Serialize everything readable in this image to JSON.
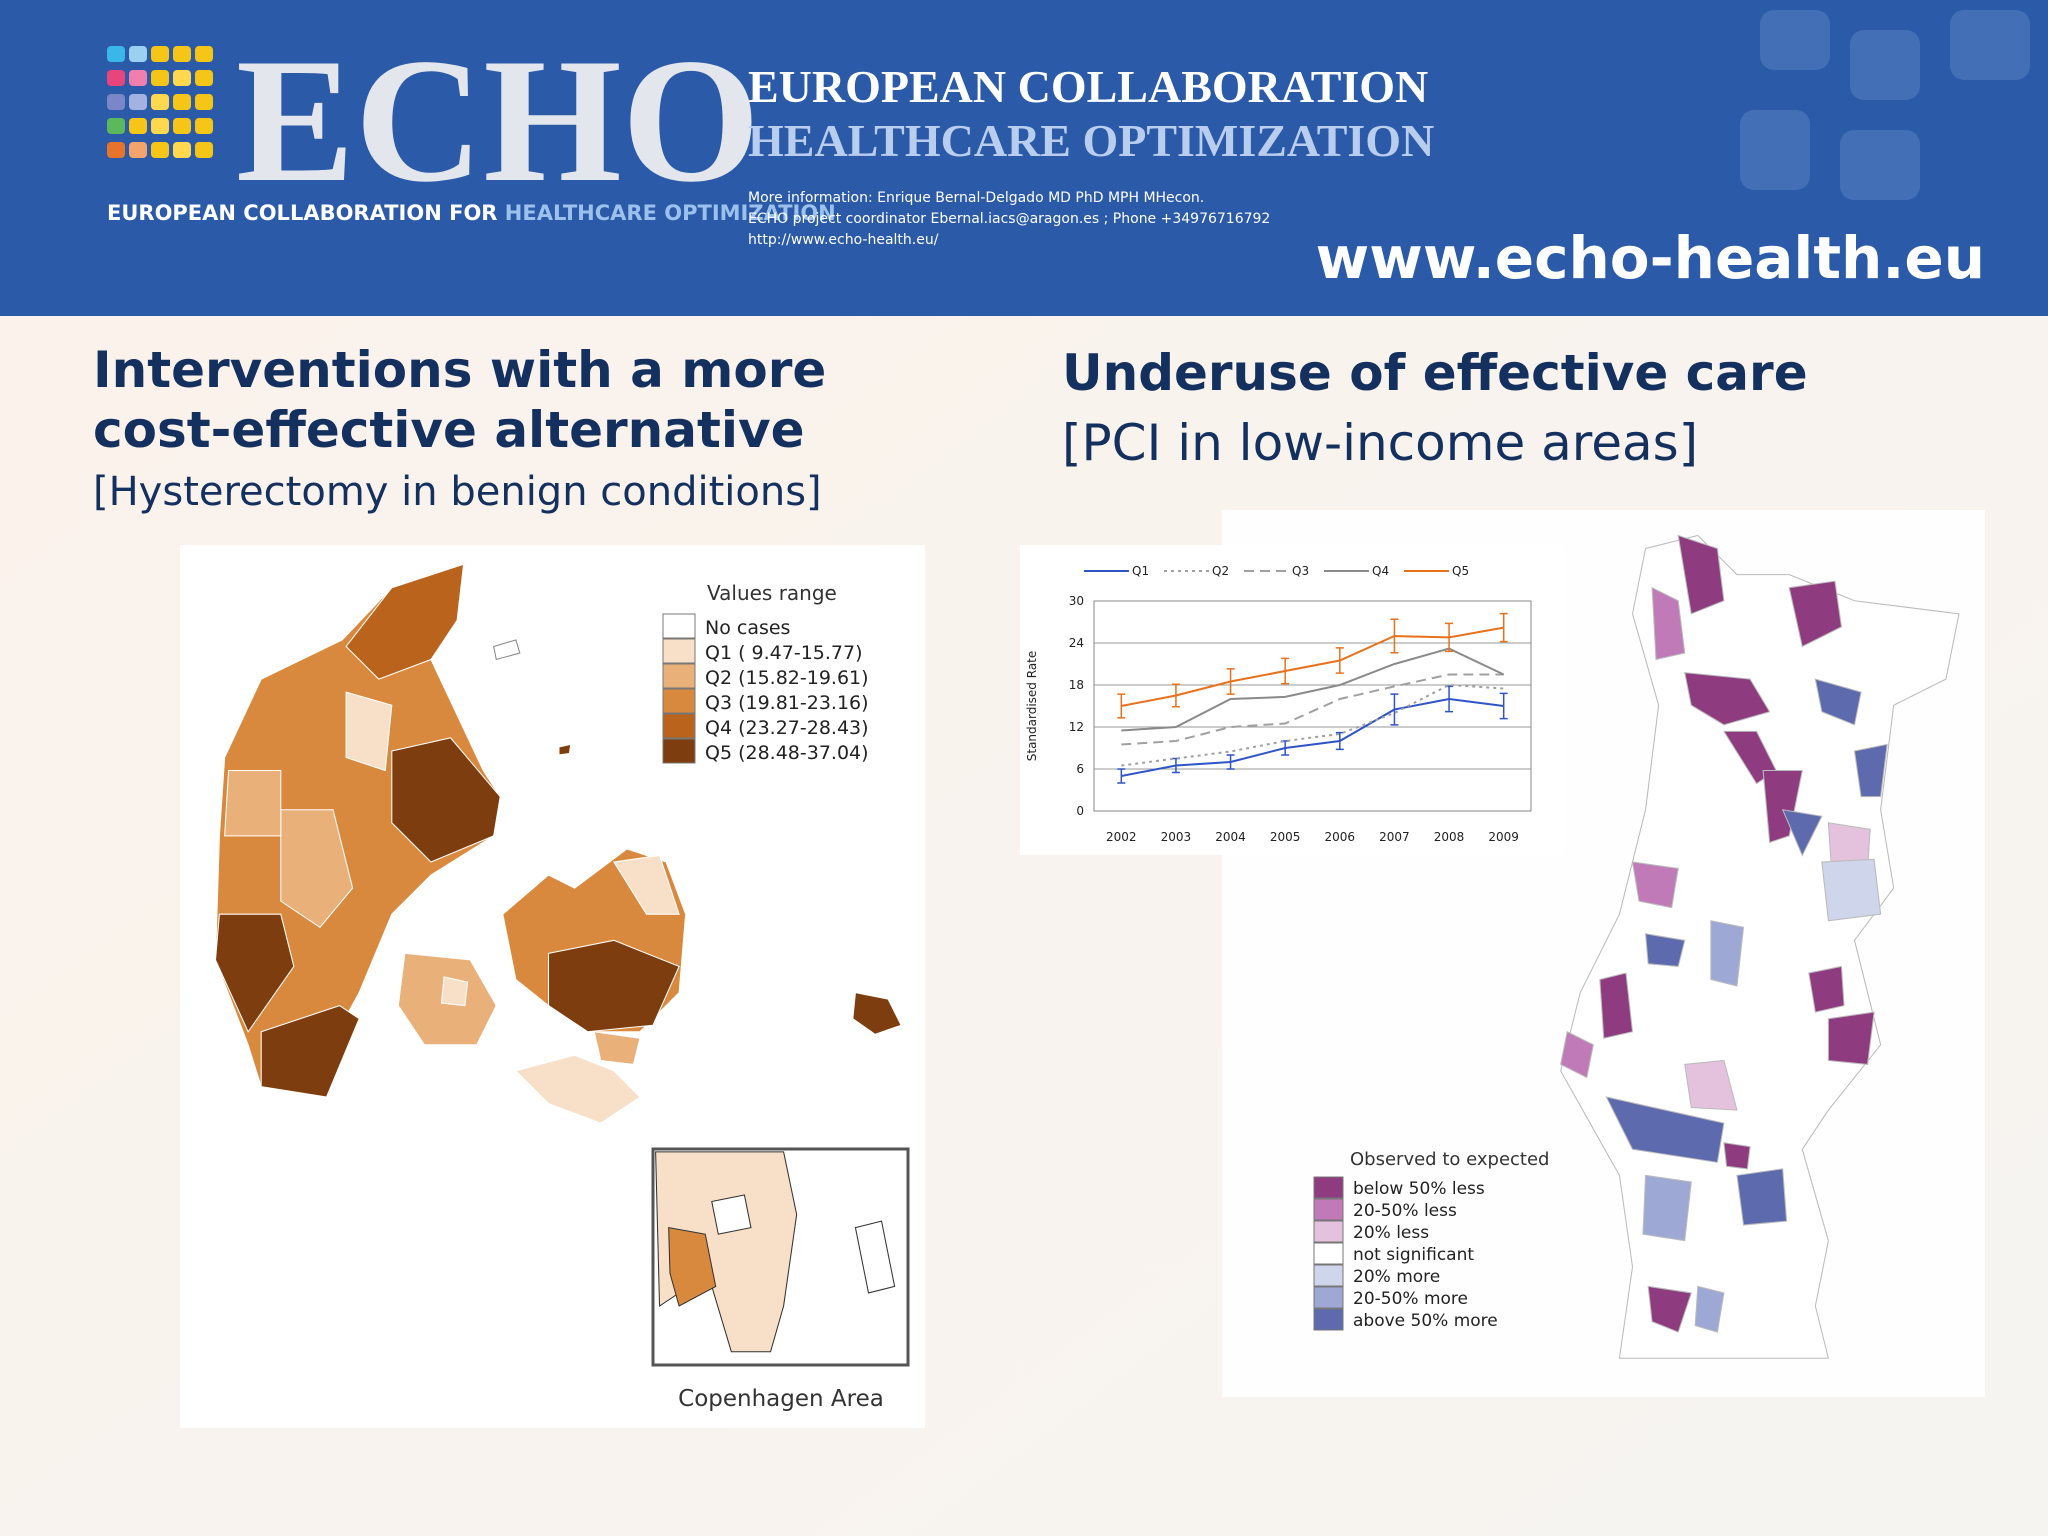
{
  "header": {
    "logo": "ECHO",
    "logo_tagline_1": "EUROPEAN COLLABORATION FOR",
    "logo_tagline_2": "HEALTHCARE OPTIMIZATION",
    "title_1": "EUROPEAN COLLABORATION",
    "title_2": "HEALTHCARE OPTIMIZATION",
    "info": [
      "More information: Enrique Bernal-Delgado MD PhD MPH MHecon.",
      "ECHO project coordinator Ebernal.iacs@aragon.es ; Phone +34976716792",
      "http://www.echo-health.eu/"
    ],
    "website": "www.echo-health.eu"
  },
  "left": {
    "title_1": "Interventions with a more",
    "title_2": "cost-effective alternative",
    "subtitle": "[Hysterectomy in benign conditions]",
    "legend_title": "Values range",
    "legend": [
      {
        "label": "No cases",
        "color": "#ffffff"
      },
      {
        "label": "Q1 ( 9.47-15.77)",
        "color": "#f7dfc8"
      },
      {
        "label": "Q2 (15.82-19.61)",
        "color": "#e9b07a"
      },
      {
        "label": "Q3 (19.81-23.16)",
        "color": "#d9893e"
      },
      {
        "label": "Q4 (23.27-28.43)",
        "color": "#b9631c"
      },
      {
        "label": "Q5 (28.48-37.04)",
        "color": "#7e3d0e"
      }
    ],
    "inset_caption": "Copenhagen Area"
  },
  "right": {
    "title": "Underuse of effective care",
    "subtitle": "[PCI in low-income areas]",
    "legend_title": "Observed to expected",
    "legend": [
      {
        "label": "below 50% less",
        "color": "#8e3b80"
      },
      {
        "label": "20-50% less",
        "color": "#c07ab7"
      },
      {
        "label": "20% less",
        "color": "#e4c2de"
      },
      {
        "label": "not significant",
        "color": "#ffffff"
      },
      {
        "label": "20% more",
        "color": "#cfd5ea"
      },
      {
        "label": "20-50% more",
        "color": "#9ea8d4"
      },
      {
        "label": "above 50% more",
        "color": "#5e6aae"
      }
    ]
  },
  "chart_data": {
    "type": "line",
    "y_label": "Standardised Rate",
    "categories": [
      "2002",
      "2003",
      "2004",
      "2005",
      "2006",
      "2007",
      "2008",
      "2009"
    ],
    "series": [
      {
        "name": "Q1",
        "color": "#2f54c8",
        "dash": "solid",
        "values": [
          5,
          6.5,
          7,
          9,
          10,
          14.5,
          16,
          15
        ],
        "errors": [
          1,
          1,
          1,
          1,
          1.2,
          2.2,
          1.8,
          1.8
        ]
      },
      {
        "name": "Q2",
        "color": "#a0a0a0",
        "dash": "dotted",
        "values": [
          6.5,
          7.5,
          8.5,
          10,
          11,
          14,
          18,
          17.5
        ]
      },
      {
        "name": "Q3",
        "color": "#a0a0a0",
        "dash": "dashed",
        "values": [
          9.5,
          10,
          12,
          12.5,
          16,
          17.8,
          19.5,
          19.5
        ]
      },
      {
        "name": "Q4",
        "color": "#8a8a8a",
        "dash": "solid",
        "values": [
          11.5,
          12,
          16,
          16.3,
          18,
          21,
          23.2,
          19.5
        ]
      },
      {
        "name": "Q5",
        "color": "#e8711c",
        "dash": "solid",
        "values": [
          15,
          16.5,
          18.5,
          20,
          21.5,
          25,
          24.8,
          26.2
        ],
        "errors": [
          1.7,
          1.6,
          1.8,
          1.8,
          1.8,
          2.4,
          2,
          2
        ]
      }
    ],
    "ylim": [
      0,
      30
    ],
    "yticks": [
      0,
      6,
      12,
      18,
      24,
      30
    ],
    "grid": true,
    "legend": "top"
  }
}
